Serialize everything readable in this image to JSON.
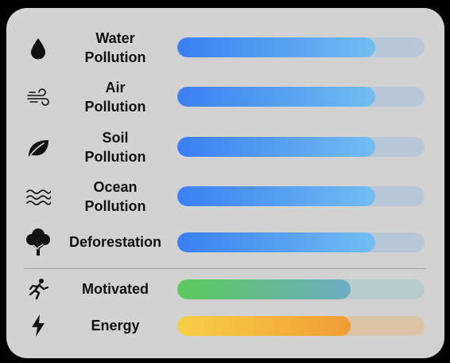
{
  "widget": {
    "pollution": [
      {
        "id": "water",
        "label": "Water\nPollution",
        "icon": "water-drop-icon",
        "level": 0.8
      },
      {
        "id": "air",
        "label": "Air\nPollution",
        "icon": "wind-icon",
        "level": 0.8
      },
      {
        "id": "soil",
        "label": "Soil\nPollution",
        "icon": "leaf-icon",
        "level": 0.8
      },
      {
        "id": "ocean",
        "label": "Ocean\nPollution",
        "icon": "waves-icon",
        "level": 0.8
      },
      {
        "id": "deforestation",
        "label": "Deforestation",
        "icon": "tree-icon",
        "level": 0.8
      }
    ],
    "status": [
      {
        "id": "motivated",
        "label": "Motivated",
        "icon": "running-figure-icon",
        "level": 0.7
      },
      {
        "id": "energy",
        "label": "Energy",
        "icon": "lightning-bolt-icon",
        "level": 0.7
      }
    ],
    "colors": {
      "pollution_fill_start": "#3a7ff3",
      "pollution_fill_end": "#72bdf0",
      "motivated_fill_start": "#5cc95c",
      "motivated_fill_end": "#6cadc2",
      "energy_fill_start": "#f8cf47",
      "energy_fill_end": "#f09d34"
    }
  }
}
